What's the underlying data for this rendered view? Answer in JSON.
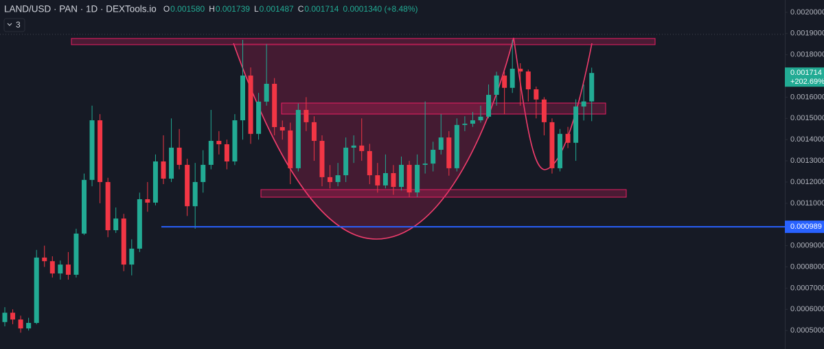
{
  "chart_data": {
    "type": "candlestick",
    "title": "LAND/USD · PAN · 1D · DEXTools.io",
    "ohlc_legend": [
      {
        "key": "O",
        "value": "0.001580"
      },
      {
        "key": "H",
        "value": "0.001739"
      },
      {
        "key": "L",
        "value": "0.001487"
      },
      {
        "key": "C",
        "value": "0.001714"
      }
    ],
    "change": "0.0001340 (+8.48%)",
    "indicator_count": "3",
    "up_color": "#22ab94",
    "down_color": "#f23645",
    "open": [
      0.00054,
      0.000584,
      0.000552,
      0.00051,
      0.000536,
      0.000844,
      0.000827,
      0.000769,
      0.000811,
      0.000763,
      0.000957,
      0.00121,
      0.001491,
      0.0012,
      0.000973,
      0.001028,
      0.000811,
      0.000886,
      0.001119,
      0.001103,
      0.001297,
      0.001216,
      0.001362,
      0.001281,
      0.001086,
      0.0012,
      0.001281,
      0.001394,
      0.001378,
      0.001297,
      0.001491,
      0.001702,
      0.001427,
      0.001579,
      0.001663,
      0.001459,
      0.001443,
      0.001265,
      0.00154,
      0.001482,
      0.001394,
      0.001223,
      0.0012,
      0.001232,
      0.001362,
      0.001372,
      0.001346,
      0.001232,
      0.001184,
      0.001242,
      0.001177,
      0.001281,
      0.001151,
      0.001281,
      0.001287,
      0.001352,
      0.00141,
      0.001265,
      0.001469,
      0.001475,
      0.001491,
      0.001508,
      0.001611,
      0.001702,
      0.001644,
      0.001734,
      0.001721,
      0.001637,
      0.001589,
      0.001482,
      0.001265,
      0.001427,
      0.001385,
      0.001556,
      0.00158
    ],
    "high": [
      0.00061,
      0.0006,
      0.00057,
      0.00056,
      0.00088,
      0.0009,
      0.00085,
      0.00083,
      0.00087,
      0.00098,
      0.00124,
      0.00156,
      0.00152,
      0.00122,
      0.00108,
      0.00105,
      0.00093,
      0.00115,
      0.0012,
      0.00133,
      0.00142,
      0.0015,
      0.00145,
      0.00131,
      0.00129,
      0.00135,
      0.00154,
      0.00144,
      0.0014,
      0.00152,
      0.00187,
      0.00174,
      0.00162,
      0.00185,
      0.00169,
      0.00149,
      0.00148,
      0.00157,
      0.0016,
      0.00151,
      0.00142,
      0.00128,
      0.00129,
      0.00141,
      0.00142,
      0.0015,
      0.00138,
      0.00129,
      0.00133,
      0.00128,
      0.00132,
      0.0013,
      0.00133,
      0.00158,
      0.00139,
      0.00152,
      0.00144,
      0.0015,
      0.00151,
      0.00153,
      0.00156,
      0.00166,
      0.00172,
      0.00172,
      0.00187,
      0.00176,
      0.00173,
      0.00165,
      0.0016,
      0.0015,
      0.00145,
      0.00146,
      0.00159,
      0.00166,
      0.001739
    ],
    "low": [
      0.00052,
      0.00053,
      0.00049,
      0.0005,
      0.00053,
      0.0008,
      0.00075,
      0.00074,
      0.00074,
      0.00075,
      0.00095,
      0.00118,
      0.0011,
      0.00094,
      0.00096,
      0.00078,
      0.00076,
      0.00087,
      0.00106,
      0.00109,
      0.00119,
      0.0012,
      0.00126,
      0.00104,
      0.00098,
      0.00115,
      0.00126,
      0.00133,
      0.00126,
      0.00128,
      0.0014,
      0.00138,
      0.0014,
      0.00156,
      0.00142,
      0.0014,
      0.00119,
      0.00125,
      0.00144,
      0.0013,
      0.00118,
      0.00117,
      0.00118,
      0.0012,
      0.00129,
      0.0013,
      0.00119,
      0.00115,
      0.00117,
      0.00114,
      0.00116,
      0.00113,
      0.00113,
      0.00124,
      0.00125,
      0.00133,
      0.00123,
      0.00125,
      0.00144,
      0.00146,
      0.00148,
      0.0015,
      0.00156,
      0.00152,
      0.00162,
      0.00156,
      0.00158,
      0.0015,
      0.00142,
      0.00124,
      0.00125,
      0.00136,
      0.0013,
      0.00149,
      0.001487
    ],
    "close": [
      0.000584,
      0.000552,
      0.00051,
      0.000536,
      0.000844,
      0.000827,
      0.000769,
      0.000811,
      0.000763,
      0.000957,
      0.00121,
      0.001491,
      0.0012,
      0.000973,
      0.001028,
      0.000811,
      0.000886,
      0.001119,
      0.001103,
      0.001297,
      0.001216,
      0.001362,
      0.001281,
      0.001086,
      0.0012,
      0.001281,
      0.001394,
      0.001378,
      0.001297,
      0.001491,
      0.001702,
      0.001427,
      0.001579,
      0.001663,
      0.001459,
      0.001443,
      0.001265,
      0.00154,
      0.001482,
      0.001394,
      0.001223,
      0.0012,
      0.001232,
      0.001362,
      0.001372,
      0.001346,
      0.001232,
      0.001184,
      0.001242,
      0.001177,
      0.001281,
      0.001151,
      0.001281,
      0.001287,
      0.001352,
      0.00141,
      0.001265,
      0.001469,
      0.001475,
      0.001491,
      0.001508,
      0.001611,
      0.001702,
      0.001644,
      0.001734,
      0.001721,
      0.001637,
      0.001589,
      0.001482,
      0.001265,
      0.001427,
      0.001385,
      0.001556,
      0.00158,
      0.001714
    ],
    "last_price": {
      "value": 0.001714,
      "label": "0.001714",
      "change_label": "+202.69%"
    },
    "level": {
      "value": 0.000989,
      "label": "0.000989",
      "color": "#2962ff"
    },
    "ylim": [
      0.000413,
      0.002058
    ],
    "yticks": [
      {
        "value": 0.002,
        "label": "0.0020000"
      },
      {
        "value": 0.0019,
        "label": "0.0019000"
      },
      {
        "value": 0.0018,
        "label": "0.0018000"
      },
      {
        "value": 0.0017,
        "label": "0.0017000"
      },
      {
        "value": 0.0016,
        "label": "0.0016000"
      },
      {
        "value": 0.0015,
        "label": "0.0015000"
      },
      {
        "value": 0.0014,
        "label": "0.0014000"
      },
      {
        "value": 0.0013,
        "label": "0.0013000"
      },
      {
        "value": 0.0012,
        "label": "0.0012000"
      },
      {
        "value": 0.0011,
        "label": "0.0011000"
      },
      {
        "value": 0.0009,
        "label": "0.0009000"
      },
      {
        "value": 0.0008,
        "label": "0.0008000"
      },
      {
        "value": 0.0007,
        "label": "0.0007000"
      },
      {
        "value": 0.0006,
        "label": "0.0006000"
      },
      {
        "value": 0.0005,
        "label": "0.0005000"
      }
    ],
    "grid": false
  }
}
